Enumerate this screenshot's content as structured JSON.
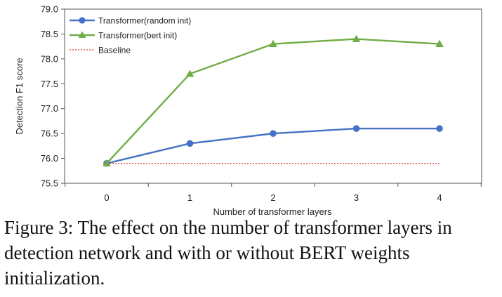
{
  "chart_data": {
    "type": "line",
    "x": [
      0,
      1,
      2,
      3,
      4
    ],
    "xticks": [
      "0",
      "1",
      "2",
      "3",
      "4"
    ],
    "xlabel": "Number of transformer layers",
    "ylabel": "Detection F1 score",
    "ylim": [
      75.5,
      79.0
    ],
    "yticks": [
      "75.5",
      "76.0",
      "76.5",
      "77.0",
      "77.5",
      "78.0",
      "78.5",
      "79.0"
    ],
    "grid": false,
    "legend_position": "top-left",
    "series": [
      {
        "name": "Transformer(random init)",
        "values": [
          75.9,
          76.3,
          76.5,
          76.6,
          76.6
        ],
        "color": "#4472c4",
        "marker": "circle",
        "style": "solid"
      },
      {
        "name": "Transformer(bert init)",
        "values": [
          75.9,
          77.7,
          78.3,
          78.4,
          78.3
        ],
        "color": "#70ad47",
        "marker": "triangle",
        "style": "solid"
      },
      {
        "name": "Baseline",
        "values": [
          75.9,
          75.9,
          75.9,
          75.9,
          75.9
        ],
        "color": "#e03c31",
        "marker": "none",
        "style": "dotted"
      }
    ]
  },
  "caption": "Figure 3: The effect on the number of transformer layers in detection network and with or without BERT weights initialization."
}
